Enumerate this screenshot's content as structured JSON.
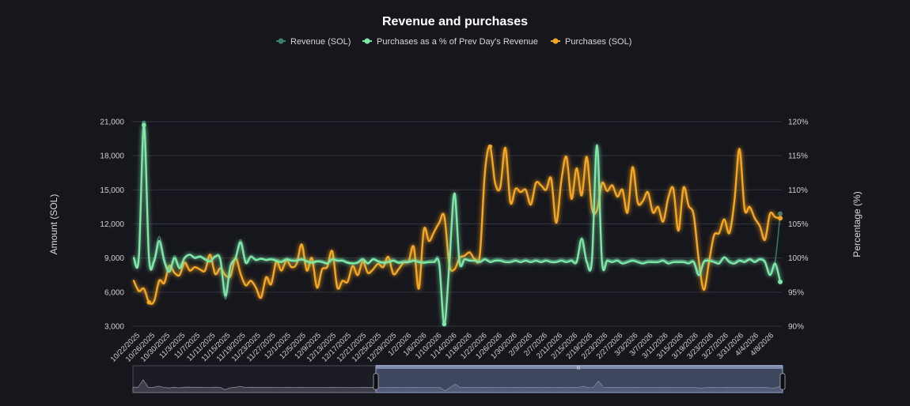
{
  "chart_data": {
    "type": "line",
    "title": "Revenue and purchases",
    "ylabel_left": "Amount (SOL)",
    "ylabel_right": "Percentage (%)",
    "ylim_left": [
      3000,
      21000
    ],
    "ylim_right": [
      90,
      120
    ],
    "yticks_left": [
      "3,000",
      "6,000",
      "9,000",
      "12,000",
      "15,000",
      "18,000",
      "21,000"
    ],
    "yticks_right": [
      "90%",
      "95%",
      "100%",
      "105%",
      "110%",
      "115%",
      "120%"
    ],
    "legend_position": "top-center",
    "x_labels": [
      "10/22/2025",
      "10/26/2025",
      "10/30/2025",
      "11/3/2025",
      "11/7/2025",
      "11/11/2025",
      "11/15/2025",
      "11/19/2025",
      "11/23/2025",
      "11/27/2025",
      "12/1/2025",
      "12/5/2025",
      "12/9/2025",
      "12/13/2025",
      "12/17/2025",
      "12/21/2025",
      "12/25/2025",
      "12/29/2025",
      "1/2/2026",
      "1/6/2026",
      "1/10/2026",
      "1/14/2026",
      "1/18/2026",
      "1/22/2026",
      "1/26/2026",
      "1/30/2026",
      "2/3/2026",
      "2/7/2026",
      "2/11/2026",
      "2/15/2026",
      "2/19/2026",
      "2/23/2026",
      "2/27/2026",
      "3/3/2026",
      "3/7/2026",
      "3/11/2026",
      "3/15/2026",
      "3/19/2026",
      "3/23/2026",
      "3/27/2026",
      "3/31/2026",
      "4/4/2026",
      "4/8/2026"
    ],
    "series": [
      {
        "name": "Revenue (SOL)",
        "axis": "left",
        "color": "#3f7f6a",
        "values": [
          9200,
          9200,
          20900,
          9100,
          9000,
          10900,
          9000,
          8000,
          9200,
          8300,
          9100,
          9300,
          9100,
          9200,
          9000,
          8800,
          9200,
          9000,
          5400,
          8300,
          9100,
          10600,
          8800,
          9200,
          8900,
          9000,
          8900,
          9000,
          8900,
          8800,
          9000,
          8900,
          8900,
          9000,
          8800,
          8700,
          8800,
          8800,
          8600,
          9000,
          8900,
          8900,
          8700,
          8600,
          8700,
          9000,
          8600,
          9000,
          8800,
          8700,
          8800,
          8900,
          8700,
          8800,
          8800,
          8900,
          8800,
          8700,
          8800,
          8800,
          8700,
          3200,
          8600,
          14300,
          8800,
          9000,
          8900,
          8900,
          8800,
          9000,
          8800,
          8900,
          8900,
          8800,
          8800,
          8900,
          8800,
          8900,
          8800,
          8900,
          8800,
          8900,
          8800,
          8800,
          8900,
          8800,
          8900,
          8800,
          10800,
          8800,
          8900,
          19000,
          8800,
          8900,
          8800,
          8900,
          8700,
          8800,
          8900,
          8800,
          8700,
          8800,
          8800,
          8800,
          8900,
          8700,
          8800,
          8800,
          8800,
          8700,
          8800,
          7800,
          8800,
          8900,
          8800,
          8700,
          9100,
          8800,
          8700,
          8900,
          8800,
          9000,
          8800,
          9000,
          8800,
          7600,
          8700,
          12900
        ]
      },
      {
        "name": "Purchases as a % of Prev Day's Revenue",
        "axis": "right",
        "color": "#7ee8a8",
        "values": [
          100,
          100,
          119.5,
          100,
          99.5,
          102.5,
          99.5,
          98,
          100,
          98.5,
          100,
          100.5,
          100,
          100.2,
          99.8,
          99.5,
          100.2,
          99.8,
          94.5,
          98.8,
          100,
          102.3,
          99.3,
          100.2,
          99.7,
          99.9,
          99.7,
          99.8,
          99.6,
          99.4,
          99.8,
          99.6,
          99.6,
          99.8,
          99.5,
          99.3,
          99.5,
          99.4,
          99.2,
          99.8,
          99.6,
          99.6,
          99.3,
          99.2,
          99.3,
          99.8,
          99.2,
          99.8,
          99.5,
          99.3,
          99.4,
          99.6,
          99.3,
          99.4,
          99.4,
          99.6,
          99.4,
          99.3,
          99.4,
          99.4,
          99.2,
          90.3,
          99.2,
          109.5,
          99.4,
          99.8,
          99.6,
          99.6,
          99.4,
          99.8,
          99.4,
          99.6,
          99.6,
          99.4,
          99.4,
          99.6,
          99.4,
          99.6,
          99.4,
          99.6,
          99.4,
          99.6,
          99.4,
          99.4,
          99.6,
          99.4,
          99.6,
          99.4,
          102.8,
          99.4,
          99.6,
          116.5,
          99.4,
          99.6,
          99.4,
          99.6,
          99.2,
          99.4,
          99.6,
          99.4,
          99.2,
          99.4,
          99.4,
          99.4,
          99.6,
          99.2,
          99.4,
          99.4,
          99.4,
          99.2,
          99.4,
          97.5,
          99.4,
          99.6,
          99.4,
          99.2,
          100.1,
          99.4,
          99.2,
          99.6,
          99.4,
          99.8,
          99.4,
          99.8,
          99.4,
          97.5,
          99.2,
          96.5
        ]
      },
      {
        "name": "Purchases (SOL)",
        "axis": "left",
        "color": "#f5a623",
        "values": [
          7000,
          6100,
          6300,
          5100,
          5200,
          7000,
          6800,
          8300,
          7700,
          7500,
          8600,
          7900,
          8200,
          8000,
          7900,
          9300,
          7600,
          8100,
          7500,
          7400,
          9000,
          7600,
          6600,
          7000,
          6400,
          5500,
          7300,
          6700,
          8700,
          7900,
          8800,
          8200,
          8500,
          10200,
          7900,
          9000,
          6400,
          8000,
          8200,
          9600,
          6400,
          7000,
          6900,
          8300,
          7500,
          8700,
          7700,
          8000,
          8500,
          8200,
          9100,
          7600,
          8000,
          8600,
          8700,
          10000,
          6300,
          11500,
          10500,
          11300,
          12100,
          12700,
          8400,
          8000,
          9000,
          9200,
          9500,
          8900,
          9300,
          16600,
          18800,
          15600,
          15200,
          18700,
          13900,
          15100,
          14800,
          15000,
          13700,
          15600,
          15400,
          15000,
          16000,
          12100,
          15800,
          17900,
          14200,
          16900,
          14500,
          17900,
          13400,
          13200,
          15600,
          14900,
          15400,
          14400,
          15000,
          13000,
          17000,
          13900,
          14000,
          14800,
          13000,
          13500,
          12200,
          14300,
          15100,
          11400,
          15200,
          13600,
          12800,
          8800,
          6200,
          8600,
          11000,
          11200,
          12400,
          11200,
          14000,
          18600,
          13300,
          13500,
          12500,
          11800,
          10600,
          12900,
          12600,
          12500
        ]
      }
    ]
  }
}
